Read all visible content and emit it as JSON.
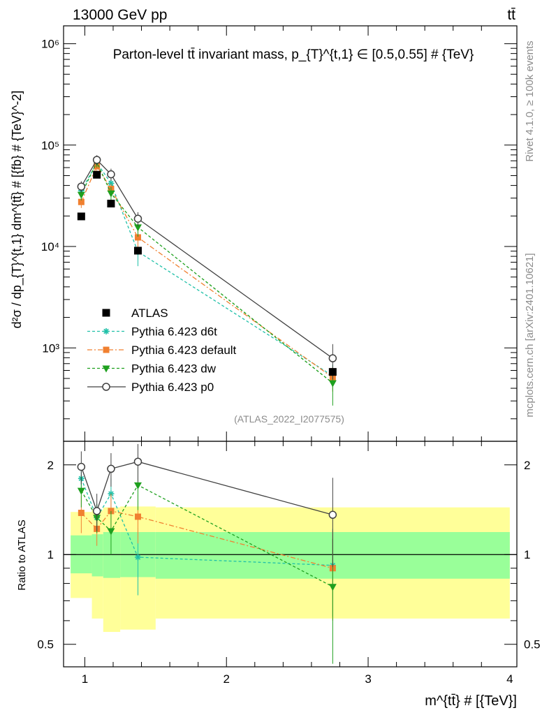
{
  "header": {
    "energy_label": "13000 GeV pp",
    "process_label": "tt̄"
  },
  "side_labels": {
    "rivet": "Rivet 4.1.0, ≥ 100k events",
    "source": "mcplots.cern.ch [arXiv:2401.10621]"
  },
  "watermark": "(ATLAS_2022_I2077575)",
  "chart_data": [
    {
      "panel": "main",
      "type": "line",
      "title": "Parton-level tt̄ invariant mass, p_{T}^{t,1} ∈ [0.5,0.55] # {TeV}",
      "ylabel": "d²σ / dp_{T}^{t,1} dm^{tt̄} # [{fb} # {TeV}^-2]",
      "yscale": "log",
      "xlim": [
        0.85,
        4.05
      ],
      "ylim": [
        120,
        1500000
      ],
      "ytick_labels": [
        "10³",
        "10⁴",
        "10⁵",
        "10⁶"
      ],
      "ytick_values": [
        1000,
        10000,
        100000,
        1000000
      ],
      "legend_position": "lower-left",
      "data": {
        "name": "ATLAS",
        "x": [
          0.975,
          1.085,
          1.185,
          1.375,
          2.75
        ],
        "y": [
          19800,
          51000,
          26500,
          9100,
          580
        ]
      },
      "series": [
        {
          "name": "Pythia 6.423 d6t",
          "color": "#1fc0a8",
          "dash": "4,3",
          "marker": "star",
          "x": [
            0.975,
            1.085,
            1.185,
            1.375,
            2.75
          ],
          "y": [
            35500,
            67000,
            42000,
            8900,
            530
          ],
          "err": [
            4000,
            7000,
            5000,
            2500,
            150
          ]
        },
        {
          "name": "Pythia 6.423 default",
          "color": "#f08030",
          "dash": "7,3,2,3",
          "marker": "square",
          "x": [
            0.975,
            1.085,
            1.185,
            1.375,
            2.75
          ],
          "y": [
            27500,
            62000,
            37000,
            12300,
            510
          ],
          "err": [
            3500,
            7000,
            4500,
            2500,
            140
          ]
        },
        {
          "name": "Pythia 6.423 dw",
          "color": "#1ea01e",
          "dash": "4,3",
          "marker": "triangle-down",
          "x": [
            0.975,
            1.085,
            1.185,
            1.375,
            2.75
          ],
          "y": [
            32500,
            68000,
            33500,
            15500,
            450
          ],
          "err": [
            4000,
            8000,
            5000,
            3000,
            180
          ]
        },
        {
          "name": "Pythia 6.423 p0",
          "color": "#404040",
          "dash": "",
          "marker": "open-circle",
          "x": [
            0.975,
            1.085,
            1.185,
            1.375,
            2.75
          ],
          "y": [
            39000,
            71500,
            51500,
            18800,
            790
          ],
          "err": [
            5000,
            8000,
            7000,
            3000,
            300
          ]
        }
      ]
    },
    {
      "panel": "ratio",
      "type": "line",
      "ylabel": "Ratio to ATLAS",
      "xlabel": "m^{tt̄} # [{TeV}]",
      "yscale": "log",
      "xlim": [
        0.85,
        4.05
      ],
      "ylim": [
        0.42,
        2.4
      ],
      "xtick_labels": [
        "1",
        "2",
        "3",
        "4"
      ],
      "xtick_values": [
        1,
        2,
        3,
        4
      ],
      "ytick_labels": [
        "0.5",
        "1",
        "2"
      ],
      "ytick_values": [
        0.5,
        1,
        2
      ],
      "uncertainty_bins": [
        {
          "x0": 0.9,
          "x1": 1.05,
          "stat_lo": 0.865,
          "stat_hi": 1.16,
          "tot_lo": 0.715,
          "tot_hi": 1.39
        },
        {
          "x0": 1.05,
          "x1": 1.13,
          "stat_lo": 0.845,
          "stat_hi": 1.17,
          "tot_lo": 0.61,
          "tot_hi": 1.41
        },
        {
          "x0": 1.13,
          "x1": 1.25,
          "stat_lo": 0.835,
          "stat_hi": 1.19,
          "tot_lo": 0.55,
          "tot_hi": 1.44
        },
        {
          "x0": 1.25,
          "x1": 1.5,
          "stat_lo": 0.84,
          "stat_hi": 1.19,
          "tot_lo": 0.56,
          "tot_hi": 1.45
        },
        {
          "x0": 1.5,
          "x1": 4.0,
          "stat_lo": 0.83,
          "stat_hi": 1.19,
          "tot_lo": 0.61,
          "tot_hi": 1.44
        }
      ],
      "series": [
        {
          "name": "Pythia 6.423 d6t",
          "x": [
            0.975,
            1.085,
            1.185,
            1.375,
            2.75
          ],
          "y": [
            1.8,
            1.33,
            1.6,
            0.98,
            0.92
          ],
          "err": [
            0.2,
            0.15,
            0.2,
            0.25,
            0.3
          ]
        },
        {
          "name": "Pythia 6.423 default",
          "x": [
            0.975,
            1.085,
            1.185,
            1.375,
            2.75
          ],
          "y": [
            1.38,
            1.22,
            1.4,
            1.34,
            0.9
          ],
          "err": [
            0.2,
            0.15,
            0.2,
            0.25,
            0.3
          ]
        },
        {
          "name": "Pythia 6.423 dw",
          "x": [
            0.975,
            1.085,
            1.185,
            1.375,
            2.75
          ],
          "y": [
            1.64,
            1.33,
            1.2,
            1.71,
            0.78
          ],
          "err": [
            0.2,
            0.15,
            0.2,
            0.3,
            0.35
          ]
        },
        {
          "name": "Pythia 6.423 p0",
          "x": [
            0.975,
            1.085,
            1.185,
            1.375,
            2.75
          ],
          "y": [
            1.97,
            1.4,
            1.94,
            2.05,
            1.36
          ],
          "err": [
            0.25,
            0.2,
            0.25,
            0.3,
            0.45
          ]
        }
      ]
    }
  ]
}
